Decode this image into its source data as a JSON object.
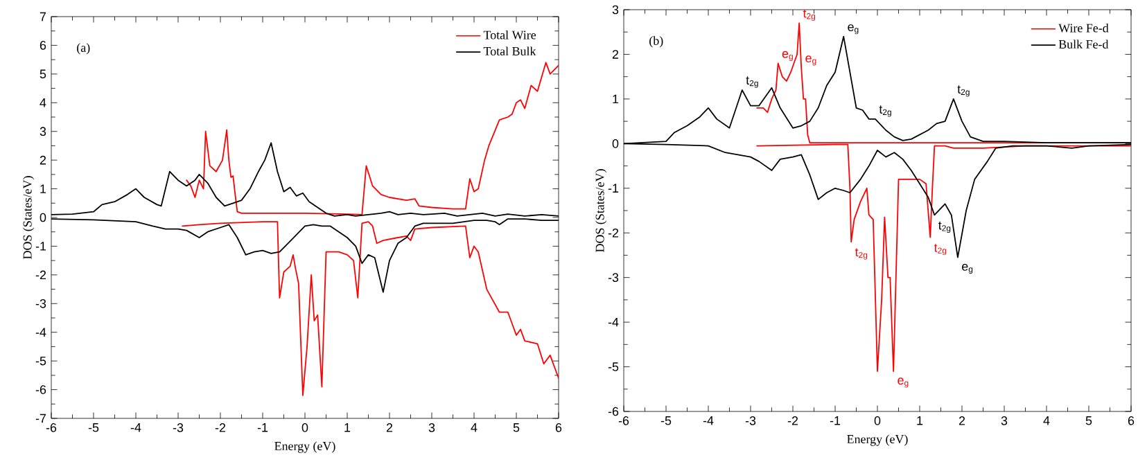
{
  "chart_data": [
    {
      "type": "line",
      "title": "(a)",
      "xlabel": "Energy (eV)",
      "ylabel": "DOS (States/eV)",
      "xlim": [
        -6,
        6
      ],
      "ylim": [
        -7,
        7
      ],
      "xticks": [
        -6,
        -5,
        -4,
        -3,
        -2,
        -1,
        0,
        1,
        2,
        3,
        4,
        5,
        6
      ],
      "yticks": [
        -7,
        -6,
        -5,
        -4,
        -3,
        -2,
        -1,
        0,
        1,
        2,
        3,
        4,
        5,
        6,
        7
      ],
      "legend": "top right",
      "series": [
        {
          "name": "Total Wire",
          "color": "#ff0000",
          "x": [
            -2.8,
            -2.7,
            -2.6,
            -2.5,
            -2.4,
            -2.35,
            -2.25,
            -2.1,
            -1.95,
            -1.85,
            -1.8,
            -1.75,
            -1.7,
            -1.65,
            -1.6,
            -1.5,
            0,
            1.0,
            1.35,
            1.45,
            1.6,
            1.8,
            2.0,
            2.4,
            2.6,
            2.7,
            3.0,
            3.5,
            3.8,
            3.9,
            4.0,
            4.1,
            4.25,
            4.35,
            4.6,
            4.8,
            4.9,
            5.0,
            5.1,
            5.2,
            5.35,
            5.5,
            5.7,
            5.8,
            6.0
          ],
          "values": [
            1.3,
            1.1,
            0.7,
            1.3,
            1.0,
            3.0,
            1.8,
            1.6,
            2.0,
            3.05,
            2.0,
            1.4,
            1.45,
            0.8,
            0.2,
            0.15,
            0.15,
            0.12,
            0.1,
            1.8,
            1.1,
            0.8,
            0.7,
            0.6,
            0.65,
            0.4,
            0.35,
            0.3,
            0.3,
            1.35,
            0.9,
            1.0,
            2.0,
            2.5,
            3.4,
            3.5,
            3.6,
            4.0,
            4.1,
            3.8,
            4.6,
            4.4,
            5.4,
            5.0,
            5.3
          ]
        },
        {
          "color": "#ff0000",
          "x": [
            -2.9,
            -2.5,
            -2.0,
            -1.0,
            -0.65,
            -0.62,
            -0.6,
            -0.5,
            -0.35,
            -0.28,
            -0.22,
            -0.15,
            -0.05,
            0.05,
            0.15,
            0.22,
            0.3,
            0.4,
            0.5,
            0.8,
            1.0,
            1.15,
            1.25,
            1.35,
            1.5,
            1.6,
            1.7,
            1.85,
            2.2,
            2.4,
            2.5,
            2.6,
            3.0,
            3.8,
            3.9,
            4.0,
            4.1,
            4.3,
            4.6,
            4.8,
            4.9,
            5.0,
            5.1,
            5.2,
            5.5,
            5.65,
            5.8,
            6.0
          ],
          "values": [
            -0.3,
            -0.25,
            -0.2,
            -0.15,
            -0.15,
            -1.8,
            -2.8,
            -1.9,
            -1.7,
            -1.3,
            -1.8,
            -2.3,
            -6.2,
            -4.5,
            -2.0,
            -3.6,
            -3.4,
            -5.9,
            -1.2,
            -1.2,
            -1.3,
            -1.5,
            -2.8,
            -0.2,
            -0.15,
            -0.3,
            -0.9,
            -0.8,
            -0.7,
            -0.65,
            -0.8,
            -0.4,
            -0.35,
            -0.3,
            -1.4,
            -1.0,
            -1.2,
            -2.5,
            -3.3,
            -3.3,
            -3.7,
            -4.1,
            -3.9,
            -4.3,
            -4.4,
            -5.1,
            -4.8,
            -5.6
          ]
        },
        {
          "name": "Total Bulk",
          "color": "#000000",
          "x": [
            -6,
            -5.5,
            -5,
            -4.8,
            -4.5,
            -4.2,
            -4.0,
            -3.8,
            -3.5,
            -3.4,
            -3.2,
            -3.0,
            -2.8,
            -2.6,
            -2.5,
            -2.3,
            -2.1,
            -1.9,
            -1.7,
            -1.5,
            -1.3,
            -1.1,
            -0.95,
            -0.8,
            -0.65,
            -0.5,
            -0.35,
            -0.2,
            -0.05,
            0.1,
            0.3,
            0.5,
            0.7,
            1.0,
            1.2,
            1.5,
            1.8,
            2.0,
            2.2,
            2.5,
            2.8,
            3.0,
            3.3,
            3.6,
            3.9,
            4.2,
            4.5,
            4.8,
            5.2,
            5.6,
            6.0
          ],
          "values": [
            0.1,
            0.12,
            0.2,
            0.45,
            0.55,
            0.8,
            1.0,
            0.7,
            0.45,
            0.4,
            1.6,
            1.3,
            1.1,
            1.3,
            1.5,
            1.2,
            0.7,
            0.4,
            0.5,
            0.6,
            1.0,
            1.6,
            2.0,
            2.6,
            1.6,
            0.9,
            1.05,
            0.75,
            0.85,
            0.55,
            0.35,
            0.15,
            0.05,
            0.1,
            0.05,
            0.1,
            0.15,
            0.2,
            0.1,
            0.15,
            0.1,
            0.12,
            0.15,
            0.05,
            0.1,
            0.15,
            0.05,
            0.12,
            0.05,
            0.1,
            0.05
          ]
        },
        {
          "color": "#000000",
          "x": [
            -6,
            -5,
            -4,
            -3.6,
            -3.3,
            -3.0,
            -2.8,
            -2.5,
            -2.3,
            -2.0,
            -1.8,
            -1.6,
            -1.4,
            -1.2,
            -1.0,
            -0.8,
            -0.6,
            -0.4,
            -0.2,
            0.0,
            0.2,
            0.4,
            0.6,
            0.8,
            1.0,
            1.2,
            1.35,
            1.5,
            1.65,
            1.85,
            2.0,
            2.2,
            2.4,
            2.6,
            2.8,
            3.0,
            3.5,
            4.0,
            4.3,
            4.5,
            4.6,
            4.8,
            5.2,
            5.6,
            6.0
          ],
          "values": [
            -0.05,
            -0.08,
            -0.15,
            -0.3,
            -0.4,
            -0.4,
            -0.45,
            -0.7,
            -0.5,
            -0.35,
            -0.25,
            -0.7,
            -1.3,
            -1.2,
            -1.15,
            -1.25,
            -1.2,
            -0.9,
            -0.6,
            -0.3,
            -0.25,
            -0.3,
            -0.3,
            -0.5,
            -0.7,
            -1.0,
            -1.6,
            -1.3,
            -1.4,
            -2.6,
            -1.5,
            -0.9,
            -0.7,
            -0.3,
            -0.2,
            -0.2,
            -0.2,
            -0.1,
            -0.1,
            -0.15,
            -0.25,
            -0.05,
            -0.05,
            -0.1,
            -0.1
          ]
        }
      ]
    },
    {
      "type": "line",
      "title": "(b)",
      "xlabel": "Energy (eV)",
      "ylabel": "DOS (States/eV)",
      "xlim": [
        -6,
        6
      ],
      "ylim": [
        -6,
        3
      ],
      "xticks": [
        -6,
        -5,
        -4,
        -3,
        -2,
        -1,
        0,
        1,
        2,
        3,
        4,
        5,
        6
      ],
      "yticks": [
        -6,
        -5,
        -4,
        -3,
        -2,
        -1,
        0,
        1,
        2,
        3
      ],
      "legend": "top right",
      "series": [
        {
          "name": "Wire Fe-d",
          "color": "#ff0000",
          "x": [
            -2.85,
            -2.7,
            -2.6,
            -2.5,
            -2.4,
            -2.35,
            -2.25,
            -2.15,
            -2.05,
            -1.9,
            -1.85,
            -1.8,
            -1.75,
            -1.7,
            -1.65,
            -1.6,
            0,
            1.5,
            6
          ],
          "values": [
            0.8,
            0.8,
            0.7,
            1.0,
            1.2,
            1.8,
            1.5,
            1.4,
            1.6,
            2.0,
            2.7,
            1.7,
            1.0,
            1.0,
            0.2,
            0.02,
            0.02,
            0.02,
            0.02
          ]
        },
        {
          "color": "#ff0000",
          "x": [
            -2.85,
            -1.0,
            -0.7,
            -0.65,
            -0.62,
            -0.55,
            -0.4,
            -0.25,
            -0.2,
            -0.1,
            0.0,
            0.1,
            0.17,
            0.25,
            0.3,
            0.38,
            0.5,
            1.0,
            1.15,
            1.25,
            1.3,
            1.35,
            1.6,
            1.8,
            2.5,
            3.5,
            6
          ],
          "values": [
            -0.05,
            -0.02,
            -0.02,
            -1.0,
            -2.2,
            -1.7,
            -1.3,
            -1.0,
            -1.6,
            -1.7,
            -5.1,
            -3.5,
            -1.65,
            -3.0,
            -3.0,
            -5.1,
            -0.8,
            -0.8,
            -0.9,
            -2.1,
            -1.0,
            -0.05,
            -0.05,
            -0.1,
            -0.1,
            -0.05,
            -0.05
          ]
        },
        {
          "name": "Bulk Fe-d",
          "color": "#000000",
          "x": [
            -6,
            -5,
            -4.8,
            -4.5,
            -4.2,
            -4.0,
            -3.8,
            -3.5,
            -3.2,
            -3.0,
            -2.8,
            -2.5,
            -2.3,
            -2.0,
            -1.8,
            -1.6,
            -1.4,
            -1.2,
            -1.0,
            -0.8,
            -0.65,
            -0.5,
            -0.35,
            -0.2,
            -0.05,
            0.2,
            0.4,
            0.6,
            0.8,
            1.0,
            1.2,
            1.4,
            1.6,
            1.8,
            2.0,
            2.2,
            2.5,
            3.0,
            4,
            5,
            6
          ],
          "values": [
            0,
            0.05,
            0.25,
            0.4,
            0.6,
            0.8,
            0.55,
            0.35,
            1.2,
            0.85,
            0.85,
            1.25,
            0.8,
            0.35,
            0.4,
            0.5,
            0.8,
            1.3,
            1.6,
            2.4,
            1.6,
            0.8,
            0.75,
            0.55,
            0.55,
            0.3,
            0.15,
            0.07,
            0.1,
            0.2,
            0.3,
            0.45,
            0.5,
            1.0,
            0.5,
            0.15,
            0.05,
            0.05,
            0.02,
            0.02,
            0.02
          ]
        },
        {
          "color": "#000000",
          "x": [
            -6,
            -5,
            -4,
            -3.6,
            -3.0,
            -2.8,
            -2.5,
            -2.3,
            -2.0,
            -1.8,
            -1.6,
            -1.4,
            -1.2,
            -1.0,
            -0.8,
            -0.65,
            -0.4,
            -0.2,
            0.0,
            0.2,
            0.4,
            0.6,
            0.8,
            1.0,
            1.2,
            1.35,
            1.6,
            1.75,
            1.9,
            2.1,
            2.3,
            2.6,
            2.8,
            3.2,
            4,
            4.6,
            5,
            6
          ],
          "values": [
            0,
            -0.02,
            -0.05,
            -0.2,
            -0.3,
            -0.4,
            -0.6,
            -0.35,
            -0.3,
            -0.25,
            -0.7,
            -1.25,
            -1.1,
            -1.0,
            -1.05,
            -1.1,
            -0.8,
            -0.5,
            -0.15,
            -0.3,
            -0.2,
            -0.35,
            -0.6,
            -0.9,
            -1.2,
            -1.6,
            -1.35,
            -1.6,
            -2.55,
            -1.5,
            -0.8,
            -0.4,
            -0.1,
            -0.05,
            -0.05,
            -0.1,
            -0.05,
            -0.02
          ]
        }
      ],
      "annotations": [
        {
          "text": "t$_{2g}$",
          "x": -3.2,
          "y": 1.2
        },
        {
          "text": "e$_{g}$",
          "x": -2.35,
          "y": 1.8
        },
        {
          "text": "t$_{2g}$",
          "x": -1.85,
          "y": 2.7
        },
        {
          "text": "e$_{g}$",
          "x": -1.8,
          "y": 1.7
        },
        {
          "text": "e$_{g}$",
          "x": -0.8,
          "y": 2.4
        },
        {
          "text": "t$_{2g}$",
          "x": -0.05,
          "y": 0.55
        },
        {
          "text": "t$_{2g}$",
          "x": 1.8,
          "y": 1.0
        },
        {
          "text": "t$_{2g}$",
          "x": 1.35,
          "y": -1.6
        },
        {
          "text": "t$_{2g}$",
          "x": -0.62,
          "y": -2.2
        },
        {
          "text": "t$_{2g}$",
          "x": 1.25,
          "y": -2.1
        },
        {
          "text": "e$_{g}$",
          "x": 1.9,
          "y": -2.55
        },
        {
          "text": "e$_{g}$",
          "x": 0.38,
          "y": -5.1
        }
      ]
    }
  ]
}
